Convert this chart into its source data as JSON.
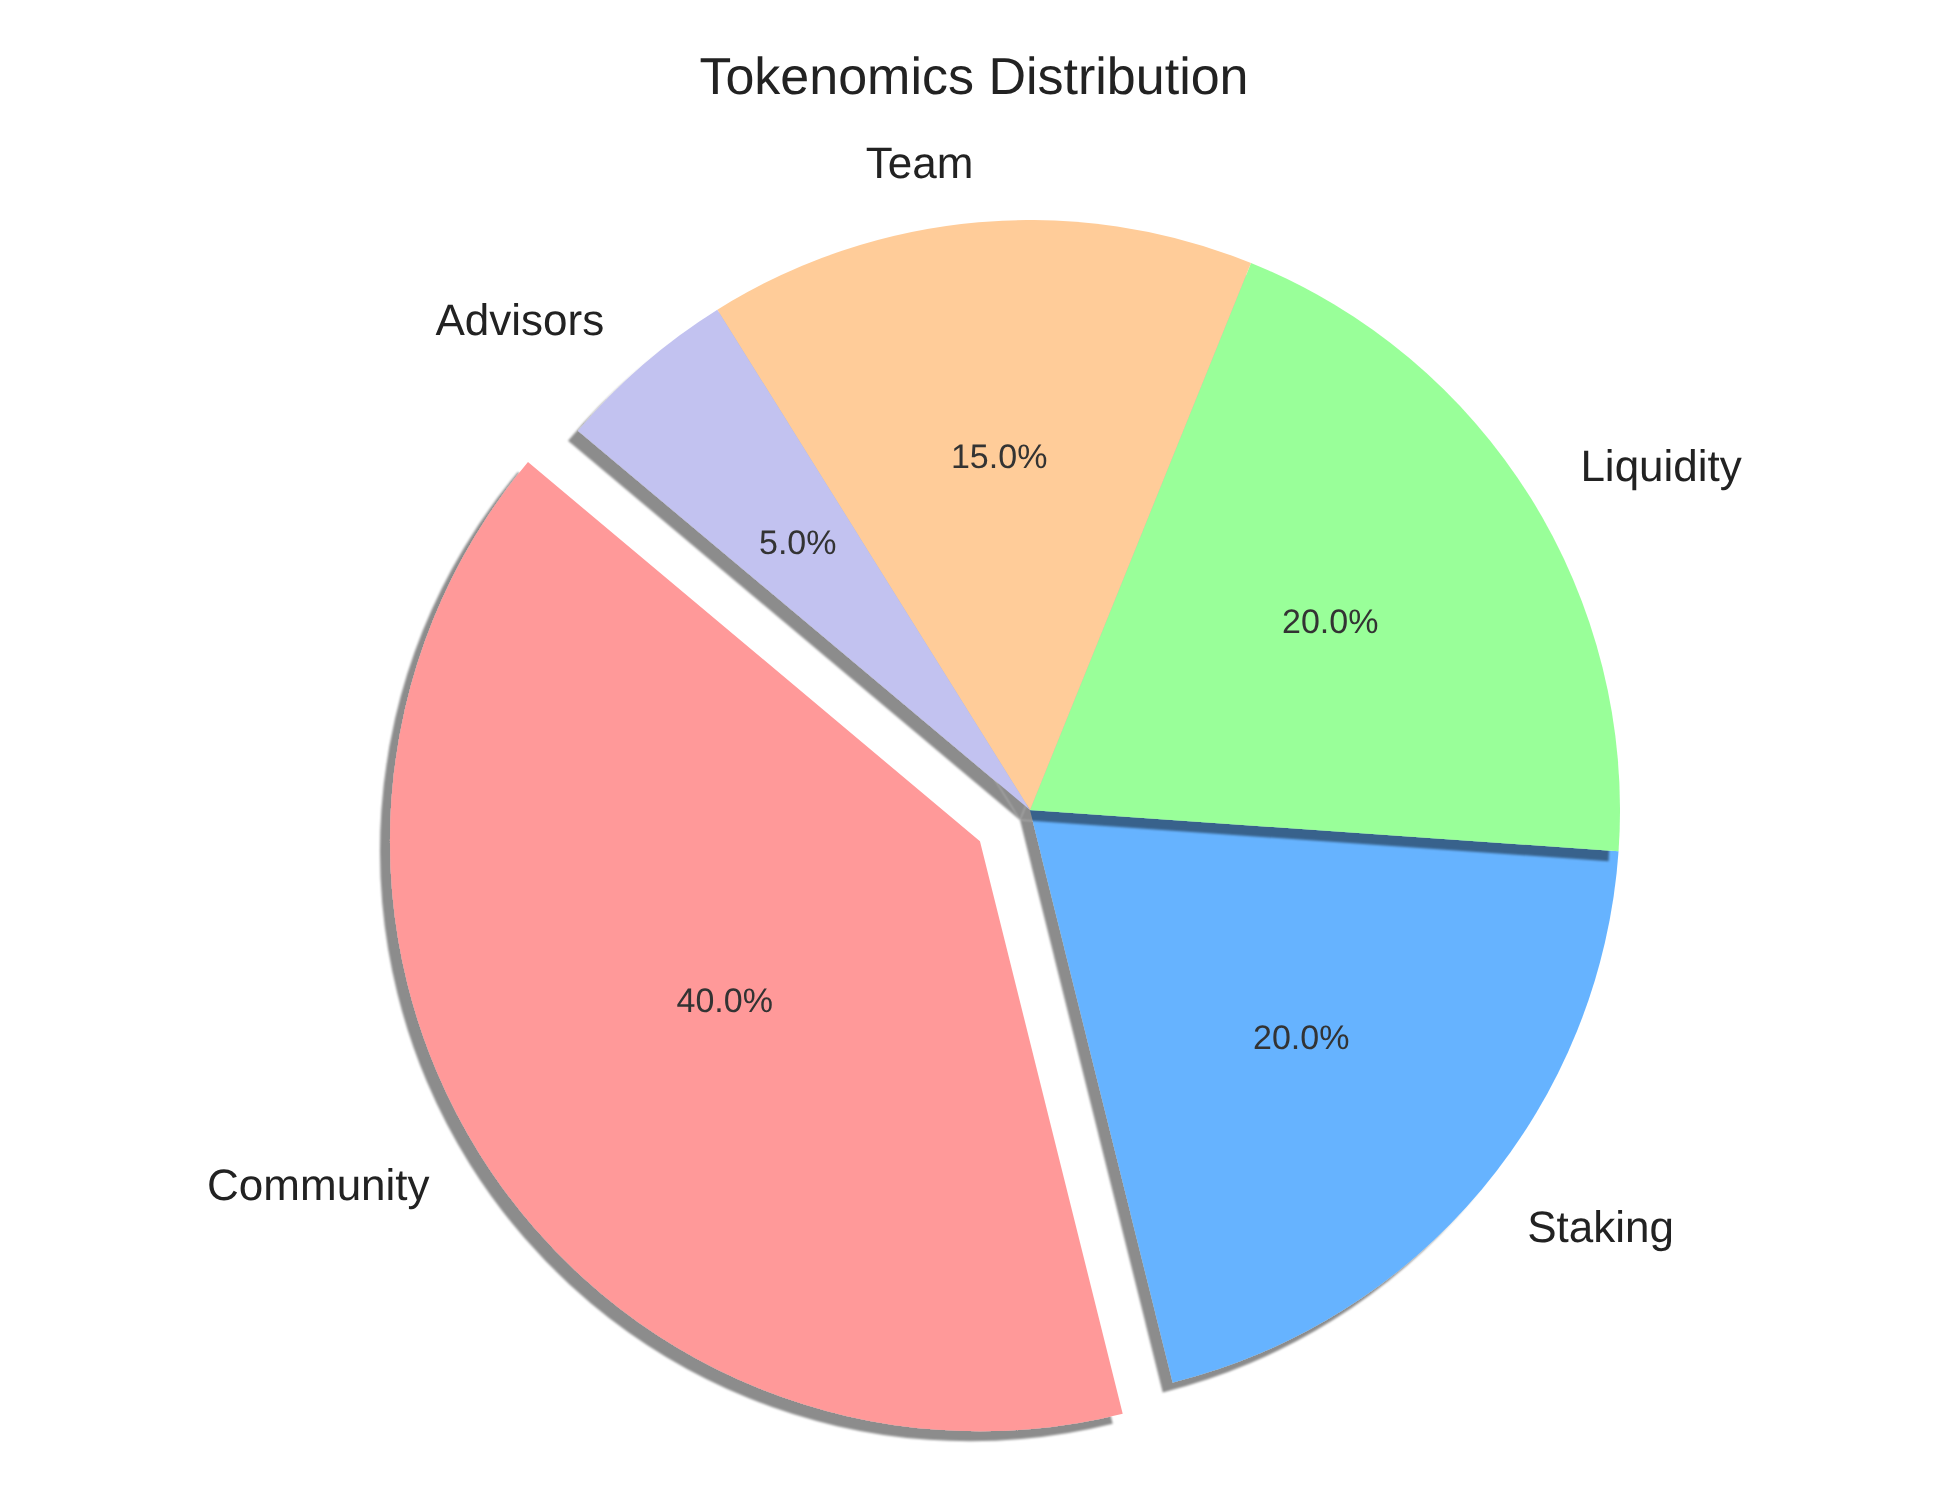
{
  "chart_data": {
    "type": "pie",
    "title": "Tokenomics Distribution",
    "categories": [
      "Community",
      "Staking",
      "Liquidity",
      "Team",
      "Advisors"
    ],
    "values": [
      40,
      20,
      20,
      15,
      5
    ],
    "colors": [
      "#ff9999",
      "#66b3ff",
      "#99ff99",
      "#ffcc99",
      "#c2c2f0"
    ],
    "value_labels": [
      "40.0%",
      "20.0%",
      "20.0%",
      "15.0%",
      "5.0%"
    ],
    "legend": false
  }
}
